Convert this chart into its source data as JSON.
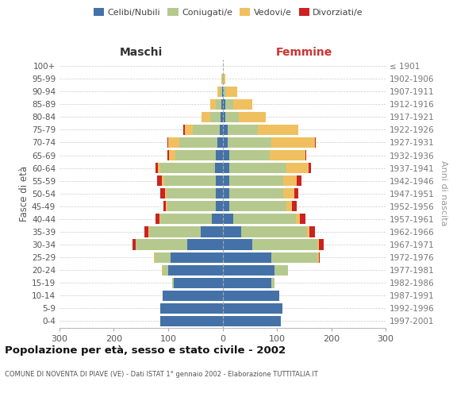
{
  "age_groups": [
    "100+",
    "95-99",
    "90-94",
    "85-89",
    "80-84",
    "75-79",
    "70-74",
    "65-69",
    "60-64",
    "55-59",
    "50-54",
    "45-49",
    "40-44",
    "35-39",
    "30-34",
    "25-29",
    "20-24",
    "15-19",
    "10-14",
    "5-9",
    "0-4"
  ],
  "birth_years": [
    "≤ 1901",
    "1902-1906",
    "1907-1911",
    "1912-1916",
    "1917-1921",
    "1922-1926",
    "1927-1931",
    "1932-1936",
    "1937-1941",
    "1942-1946",
    "1947-1951",
    "1952-1956",
    "1957-1961",
    "1962-1966",
    "1967-1971",
    "1972-1976",
    "1977-1981",
    "1982-1986",
    "1987-1991",
    "1992-1996",
    "1997-2001"
  ],
  "maschi_celibe": [
    0,
    0,
    1,
    2,
    3,
    5,
    10,
    12,
    14,
    13,
    13,
    12,
    20,
    40,
    65,
    95,
    100,
    90,
    110,
    115,
    115
  ],
  "maschi_coniugato": [
    0,
    1,
    4,
    10,
    20,
    50,
    70,
    75,
    100,
    95,
    90,
    90,
    95,
    95,
    95,
    30,
    10,
    2,
    0,
    0,
    0
  ],
  "maschi_vedovo": [
    0,
    1,
    5,
    10,
    15,
    15,
    20,
    12,
    5,
    4,
    3,
    2,
    1,
    1,
    0,
    1,
    1,
    0,
    0,
    0,
    0
  ],
  "maschi_divorziato": [
    0,
    0,
    0,
    0,
    0,
    2,
    2,
    2,
    5,
    8,
    8,
    5,
    8,
    8,
    5,
    1,
    1,
    0,
    0,
    0,
    0
  ],
  "femmine_nubile": [
    0,
    1,
    2,
    5,
    5,
    10,
    10,
    12,
    13,
    12,
    12,
    13,
    20,
    35,
    55,
    90,
    95,
    90,
    105,
    110,
    108
  ],
  "femmine_coniugata": [
    0,
    1,
    5,
    15,
    25,
    55,
    80,
    75,
    105,
    100,
    100,
    105,
    115,
    120,
    120,
    85,
    25,
    5,
    0,
    0,
    0
  ],
  "femmine_vedova": [
    0,
    3,
    20,
    35,
    50,
    75,
    80,
    65,
    40,
    25,
    20,
    10,
    8,
    5,
    3,
    2,
    0,
    0,
    0,
    0,
    0
  ],
  "femmine_divorziata": [
    0,
    0,
    0,
    0,
    0,
    0,
    2,
    2,
    5,
    8,
    8,
    8,
    10,
    10,
    8,
    2,
    1,
    0,
    0,
    0,
    0
  ],
  "colors": {
    "celibe": "#4472a8",
    "coniugato": "#b5c98e",
    "vedovo": "#f0c060",
    "divorziato": "#cc2222"
  },
  "xlim": 300,
  "xticks": [
    -300,
    -200,
    -100,
    0,
    100,
    200,
    300
  ],
  "xtick_labels": [
    "300",
    "200",
    "100",
    "0",
    "100",
    "200",
    "300"
  ],
  "title": "Popolazione per età, sesso e stato civile - 2002",
  "subtitle": "COMUNE DI NOVENTA DI PIAVE (VE) - Dati ISTAT 1° gennaio 2002 - Elaborazione TUTTITALIA.IT",
  "ylabel_left": "Fasce di età",
  "ylabel_right": "Anni di nascita",
  "xlabel_left": "Maschi",
  "xlabel_right": "Femmine",
  "legend_labels": [
    "Celibi/Nubili",
    "Coniugati/e",
    "Vedovi/e",
    "Divorziati/e"
  ],
  "bg_color": "#ffffff",
  "grid_color": "#cccccc",
  "maschi_label_color": "#333333",
  "femmine_label_color": "#cc3333"
}
